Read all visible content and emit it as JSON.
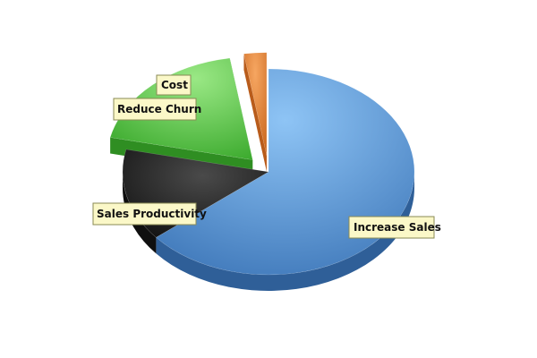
{
  "chart_data": {
    "type": "pie",
    "title": "",
    "series": [
      {
        "categories": [
          "Increase Sales",
          "Sales Productivity",
          "Reduce Churn",
          "Cost"
        ],
        "values": [
          64,
          14.5,
          19,
          2.5
        ],
        "colors": [
          "#5b93d2",
          "#262626",
          "#4cbf3c",
          "#e07a2b"
        ],
        "exploded": [
          false,
          false,
          true,
          true
        ]
      }
    ],
    "labels": {
      "increase_sales": "Increase Sales",
      "sales_productivity": "Sales Productivity",
      "reduce_churn": "Reduce Churn",
      "cost": "Cost"
    },
    "legend": "none",
    "style": "3d-pie"
  }
}
